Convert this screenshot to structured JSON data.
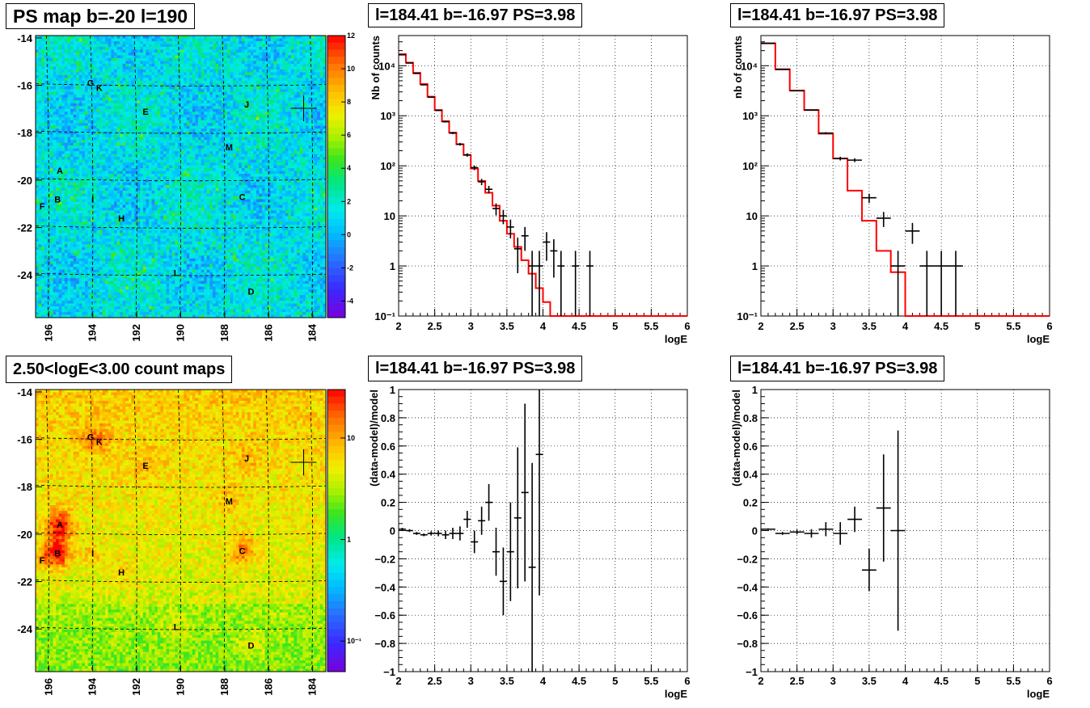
{
  "panels": {
    "ps_map": {
      "title": "PS map b=-20 l=190",
      "x_ticks": [
        196,
        194,
        192,
        190,
        188,
        186,
        184
      ],
      "y_ticks": [
        -14,
        -16,
        -18,
        -20,
        -22,
        -24
      ],
      "colorbar_ticks": [
        12,
        10,
        8,
        6,
        4,
        2,
        0,
        -2,
        -4
      ],
      "colorbar_range": [
        -5,
        12
      ]
    },
    "count_map": {
      "title": "2.50<logE<3.00 count maps",
      "x_ticks": [
        196,
        194,
        192,
        190,
        188,
        186,
        184
      ],
      "y_ticks": [
        -14,
        -16,
        -18,
        -20,
        -22,
        -24
      ],
      "colorbar_ticks": [
        "10",
        "1",
        "10⁻¹"
      ],
      "colorbar_scale": "log"
    },
    "sources": [
      {
        "name": "G",
        "l": 194.1,
        "b": -15.9
      },
      {
        "name": "K",
        "l": 193.7,
        "b": -16.1
      },
      {
        "name": "E",
        "l": 191.6,
        "b": -17.1
      },
      {
        "name": "J",
        "l": 187.0,
        "b": -16.8
      },
      {
        "name": "M",
        "l": 187.8,
        "b": -18.6
      },
      {
        "name": "A",
        "l": 195.5,
        "b": -19.6
      },
      {
        "name": "B",
        "l": 195.6,
        "b": -20.8
      },
      {
        "name": "I",
        "l": 194.0,
        "b": -20.8
      },
      {
        "name": "C",
        "l": 187.2,
        "b": -20.7
      },
      {
        "name": "F",
        "l": 196.3,
        "b": -21.1
      },
      {
        "name": "H",
        "l": 192.7,
        "b": -21.6
      },
      {
        "name": "L",
        "l": 190.2,
        "b": -23.9
      },
      {
        "name": "D",
        "l": 186.8,
        "b": -24.7
      }
    ],
    "target": {
      "l": 184.41,
      "b": -16.97
    },
    "spectrum_fine": {
      "title": "l=184.41 b=-16.97 PS=3.98",
      "ylabel": "Nb of counts",
      "xlabel": "logE"
    },
    "spectrum_coarse": {
      "title": "l=184.41 b=-16.97 PS=3.98",
      "ylabel": "nb of counts",
      "xlabel": "logE"
    },
    "resid_fine": {
      "title": "l=184.41 b=-16.97 PS=3.98",
      "ylabel": "(data-model)/model",
      "xlabel": "logE"
    },
    "resid_coarse": {
      "title": "l=184.41 b=-16.97 PS=3.98",
      "ylabel": "(data-model)/model",
      "xlabel": "logE"
    }
  },
  "colors": {
    "model": "#ff0000",
    "data": "#000000"
  },
  "chart_data": [
    {
      "type": "heatmap",
      "title": "PS map b=-20 l=190",
      "xlim": [
        196.6,
        183.4
      ],
      "ylim": [
        -25.8,
        -13.9
      ],
      "zlim": [
        -5,
        12
      ],
      "zscale": "linear"
    },
    {
      "type": "heatmap",
      "title": "2.50<logE<3.00 count maps",
      "xlim": [
        196.6,
        183.4
      ],
      "ylim": [
        -25.8,
        -13.9
      ],
      "zscale": "log",
      "zlim": [
        0.05,
        30
      ]
    },
    {
      "type": "line",
      "title": "l=184.41 b=-16.97 PS=3.98",
      "xlabel": "logE",
      "ylabel": "Nb of counts",
      "xlim": [
        2,
        6
      ],
      "ylim": [
        0.1,
        40000
      ],
      "yscale": "log",
      "x_ticks": [
        "2",
        "2.5",
        "3",
        "3.5",
        "4",
        "4.5",
        "5",
        "5.5",
        "6"
      ],
      "y_ticks": [
        "10⁻¹",
        "1",
        "10",
        "10²",
        "10³",
        "10⁴"
      ],
      "series": [
        {
          "name": "model",
          "bin_edges": [
            2,
            2.1,
            2.2,
            2.3,
            2.4,
            2.5,
            2.6,
            2.7,
            2.8,
            2.9,
            3.0,
            3.1,
            3.2,
            3.3,
            3.4,
            3.5,
            3.6,
            3.7,
            3.8,
            3.9,
            4.0,
            4.1,
            4.2,
            6.0
          ],
          "values": [
            17000,
            11500,
            7200,
            4300,
            2400,
            1300,
            780,
            460,
            270,
            165,
            88,
            50,
            29,
            16,
            8,
            4.4,
            2.4,
            1.3,
            0.7,
            0.36,
            0.19,
            0.1,
            0.1
          ]
        },
        {
          "name": "data",
          "points": [
            {
              "x": 2.05,
              "y": 16500
            },
            {
              "x": 2.15,
              "y": 11300
            },
            {
              "x": 2.25,
              "y": 7000
            },
            {
              "x": 2.35,
              "y": 4150
            },
            {
              "x": 2.45,
              "y": 2350
            },
            {
              "x": 2.55,
              "y": 1280
            },
            {
              "x": 2.65,
              "y": 760
            },
            {
              "x": 2.75,
              "y": 450
            },
            {
              "x": 2.85,
              "y": 270
            },
            {
              "x": 2.95,
              "y": 165
            },
            {
              "x": 3.05,
              "y": 92
            },
            {
              "x": 3.15,
              "y": 48
            },
            {
              "x": 3.25,
              "y": 34
            },
            {
              "x": 3.35,
              "y": 14
            },
            {
              "x": 3.45,
              "y": 10
            },
            {
              "x": 3.55,
              "y": 6
            },
            {
              "x": 3.65,
              "y": 2.2
            },
            {
              "x": 3.75,
              "y": 4
            },
            {
              "x": 3.85,
              "y": 1
            },
            {
              "x": 3.95,
              "y": 1
            },
            {
              "x": 4.05,
              "y": 3
            },
            {
              "x": 4.15,
              "y": 2
            },
            {
              "x": 4.25,
              "y": 1
            },
            {
              "x": 4.45,
              "y": 1
            },
            {
              "x": 4.65,
              "y": 1
            }
          ]
        }
      ]
    },
    {
      "type": "line",
      "title": "l=184.41 b=-16.97 PS=3.98",
      "xlabel": "logE",
      "ylabel": "nb of counts",
      "xlim": [
        2,
        6
      ],
      "ylim": [
        0.1,
        40000
      ],
      "yscale": "log",
      "x_ticks": [
        "2",
        "2.5",
        "3",
        "3.5",
        "4",
        "4.5",
        "5",
        "5.5",
        "6"
      ],
      "y_ticks": [
        "10⁻¹",
        "1",
        "10",
        "10²",
        "10³",
        "10⁴"
      ],
      "series": [
        {
          "name": "model",
          "bin_edges": [
            2,
            2.2,
            2.4,
            2.6,
            2.8,
            3.0,
            3.2,
            3.4,
            3.6,
            3.8,
            4.0,
            4.2,
            6.0
          ],
          "values": [
            28000,
            8500,
            3200,
            1300,
            440,
            140,
            32,
            8,
            2,
            0.75,
            0.1,
            0.1
          ]
        },
        {
          "name": "data",
          "points": [
            {
              "x": 2.1,
              "y": 28000
            },
            {
              "x": 2.3,
              "y": 8400
            },
            {
              "x": 2.5,
              "y": 3150
            },
            {
              "x": 2.7,
              "y": 1300
            },
            {
              "x": 2.9,
              "y": 450
            },
            {
              "x": 3.1,
              "y": 140
            },
            {
              "x": 3.3,
              "y": 130
            },
            {
              "x": 3.5,
              "y": 23
            },
            {
              "x": 3.7,
              "y": 9
            },
            {
              "x": 3.9,
              "y": 1
            },
            {
              "x": 4.1,
              "y": 5
            },
            {
              "x": 4.3,
              "y": 1
            },
            {
              "x": 4.5,
              "y": 1
            },
            {
              "x": 4.7,
              "y": 1
            }
          ]
        }
      ]
    },
    {
      "type": "scatter",
      "title": "l=184.41 b=-16.97 PS=3.98",
      "xlabel": "logE",
      "ylabel": "(data-model)/model",
      "xlim": [
        2,
        6
      ],
      "ylim": [
        -1,
        1
      ],
      "x_ticks": [
        "2",
        "2.5",
        "3",
        "3.5",
        "4",
        "4.5",
        "5",
        "5.5",
        "6"
      ],
      "y_ticks": [
        "−1",
        "−0.8",
        "−0.6",
        "−0.4",
        "−0.2",
        "0",
        "0.2",
        "0.4",
        "0.6",
        "0.8",
        "1"
      ],
      "points": [
        {
          "x": 2.05,
          "y": 0.01,
          "err": 0.01
        },
        {
          "x": 2.15,
          "y": 0.0,
          "err": 0.01
        },
        {
          "x": 2.25,
          "y": -0.02,
          "err": 0.01
        },
        {
          "x": 2.35,
          "y": -0.03,
          "err": 0.01
        },
        {
          "x": 2.45,
          "y": -0.02,
          "err": 0.015
        },
        {
          "x": 2.55,
          "y": -0.02,
          "err": 0.02
        },
        {
          "x": 2.65,
          "y": -0.03,
          "err": 0.03
        },
        {
          "x": 2.75,
          "y": -0.02,
          "err": 0.04
        },
        {
          "x": 2.85,
          "y": -0.02,
          "err": 0.05
        },
        {
          "x": 2.95,
          "y": 0.08,
          "err": 0.06
        },
        {
          "x": 3.05,
          "y": -0.08,
          "err": 0.08
        },
        {
          "x": 3.15,
          "y": 0.07,
          "err": 0.1
        },
        {
          "x": 3.25,
          "y": 0.2,
          "err": 0.13
        },
        {
          "x": 3.35,
          "y": -0.15,
          "err": 0.17
        },
        {
          "x": 3.45,
          "y": -0.36,
          "err": 0.24
        },
        {
          "x": 3.55,
          "y": -0.15,
          "err": 0.35
        },
        {
          "x": 3.65,
          "y": 0.09,
          "err": 0.5
        },
        {
          "x": 3.75,
          "y": 0.27,
          "err": 0.63
        },
        {
          "x": 3.85,
          "y": -0.26,
          "err": 0.74
        },
        {
          "x": 3.95,
          "y": 0.54,
          "err": 1.0
        }
      ]
    },
    {
      "type": "scatter",
      "title": "l=184.41 b=-16.97 PS=3.98",
      "xlabel": "logE",
      "ylabel": "(data-model)/model",
      "xlim": [
        2,
        6
      ],
      "ylim": [
        -1,
        1
      ],
      "x_ticks": [
        "2",
        "2.5",
        "3",
        "3.5",
        "4",
        "4.5",
        "5",
        "5.5",
        "6"
      ],
      "y_ticks": [
        "−1",
        "−0.8",
        "−0.6",
        "−0.4",
        "−0.2",
        "0",
        "0.2",
        "0.4",
        "0.6",
        "0.8",
        "1"
      ],
      "points": [
        {
          "x": 2.1,
          "y": 0.01,
          "err": 0.006
        },
        {
          "x": 2.3,
          "y": -0.02,
          "err": 0.01
        },
        {
          "x": 2.5,
          "y": -0.01,
          "err": 0.017
        },
        {
          "x": 2.7,
          "y": -0.02,
          "err": 0.03
        },
        {
          "x": 2.9,
          "y": 0.01,
          "err": 0.05
        },
        {
          "x": 3.1,
          "y": -0.02,
          "err": 0.08
        },
        {
          "x": 3.3,
          "y": 0.08,
          "err": 0.09
        },
        {
          "x": 3.5,
          "y": -0.28,
          "err": 0.15
        },
        {
          "x": 3.7,
          "y": 0.16,
          "err": 0.38
        },
        {
          "x": 3.9,
          "y": 0.0,
          "err": 0.71
        }
      ]
    }
  ]
}
